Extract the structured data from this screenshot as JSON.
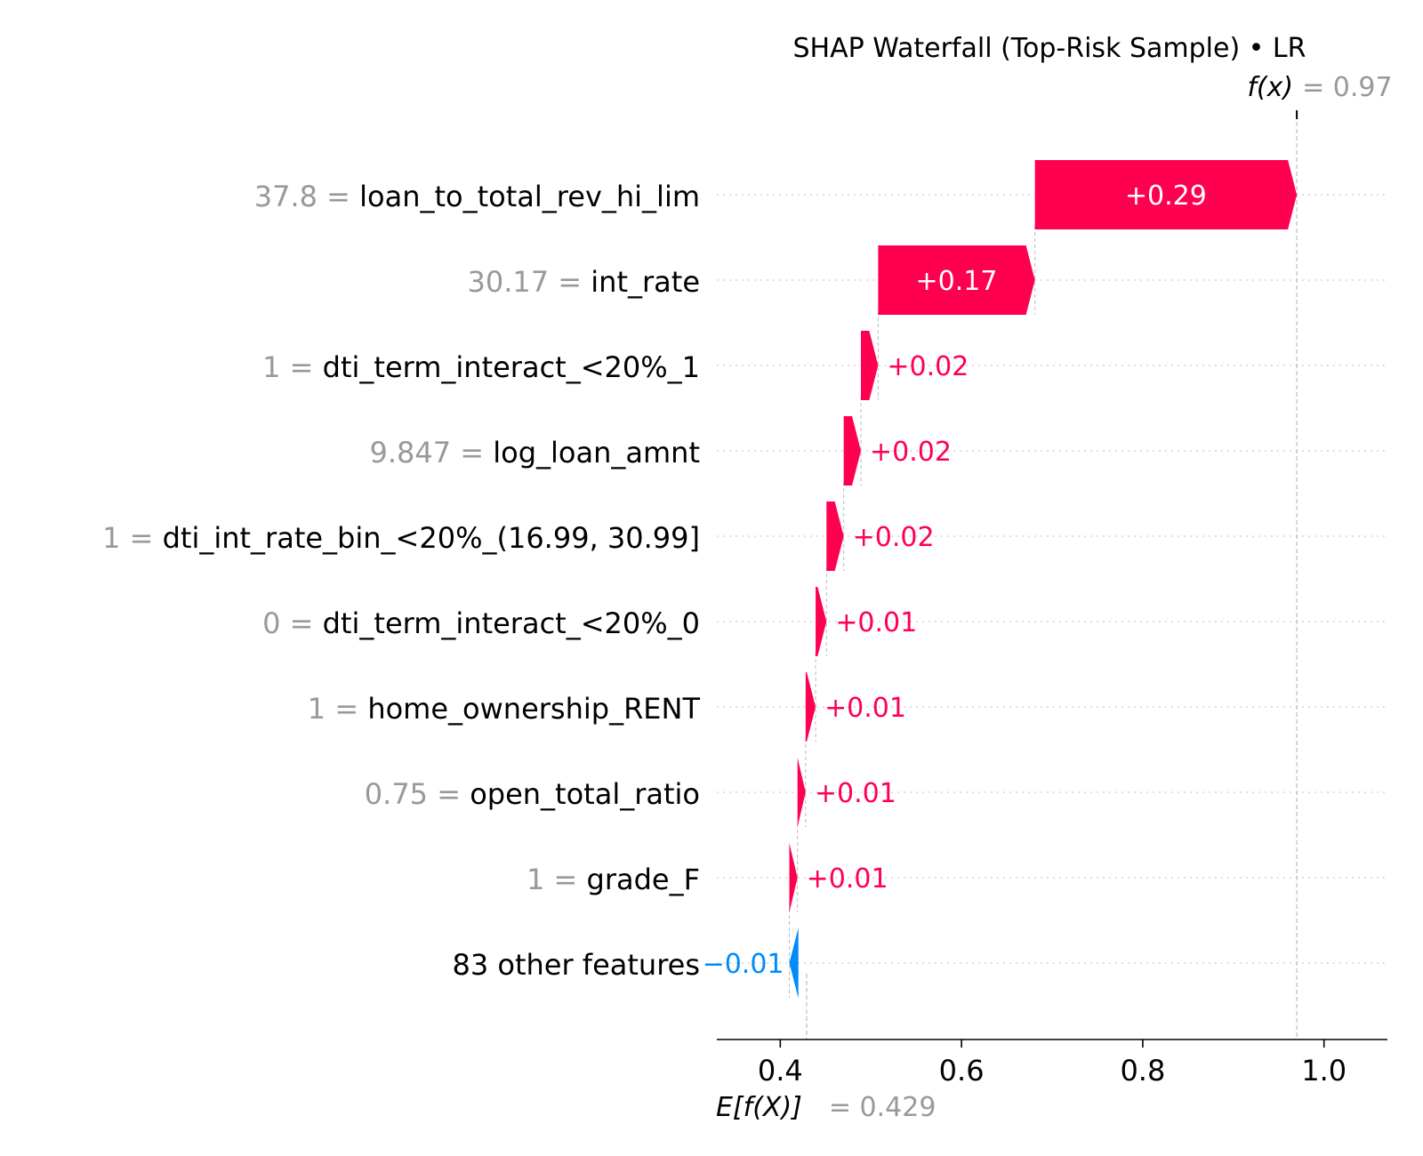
{
  "chart_data": {
    "type": "waterfall",
    "title": "SHAP Waterfall (Top-Risk Sample) • LR",
    "base_value": 0.429,
    "base_label": "E[f(X)]",
    "base_value_text": "= 0.429",
    "output_value": 0.97,
    "output_label": "f(x)",
    "output_value_text": "= 0.97",
    "xlim": [
      0.33,
      1.07
    ],
    "xticks": [
      "0.4",
      "0.6",
      "0.8",
      "1.0"
    ],
    "features": [
      {
        "value": "37.8",
        "name": "loan_to_total_rev_hi_lim",
        "shap": 0.289,
        "label": "+0.29"
      },
      {
        "value": "30.17",
        "name": "int_rate",
        "shap": 0.173,
        "label": "+0.17"
      },
      {
        "value": "1",
        "name": "dti_term_interact_<20%_1",
        "shap": 0.019,
        "label": "+0.02"
      },
      {
        "value": "9.847",
        "name": "log_loan_amnt",
        "shap": 0.019,
        "label": "+0.02"
      },
      {
        "value": "1",
        "name": "dti_int_rate_bin_<20%_(16.99, 30.99]",
        "shap": 0.019,
        "label": "+0.02"
      },
      {
        "value": "0",
        "name": "dti_term_interact_<20%_0",
        "shap": 0.012,
        "label": "+0.01"
      },
      {
        "value": "1",
        "name": "home_ownership_RENT",
        "shap": 0.011,
        "label": "+0.01"
      },
      {
        "value": "0.75",
        "name": "open_total_ratio",
        "shap": 0.009,
        "label": "+0.01"
      },
      {
        "value": "1",
        "name": "grade_F",
        "shap": 0.009,
        "label": "+0.01"
      },
      {
        "value": "",
        "name": "83 other features",
        "shap": -0.01,
        "label": "−0.01"
      }
    ],
    "colors": {
      "positive": "#ff0051",
      "negative": "#008bfb",
      "feature_value_text": "#999999",
      "text": "#000000",
      "grid": "#cccccc"
    }
  }
}
